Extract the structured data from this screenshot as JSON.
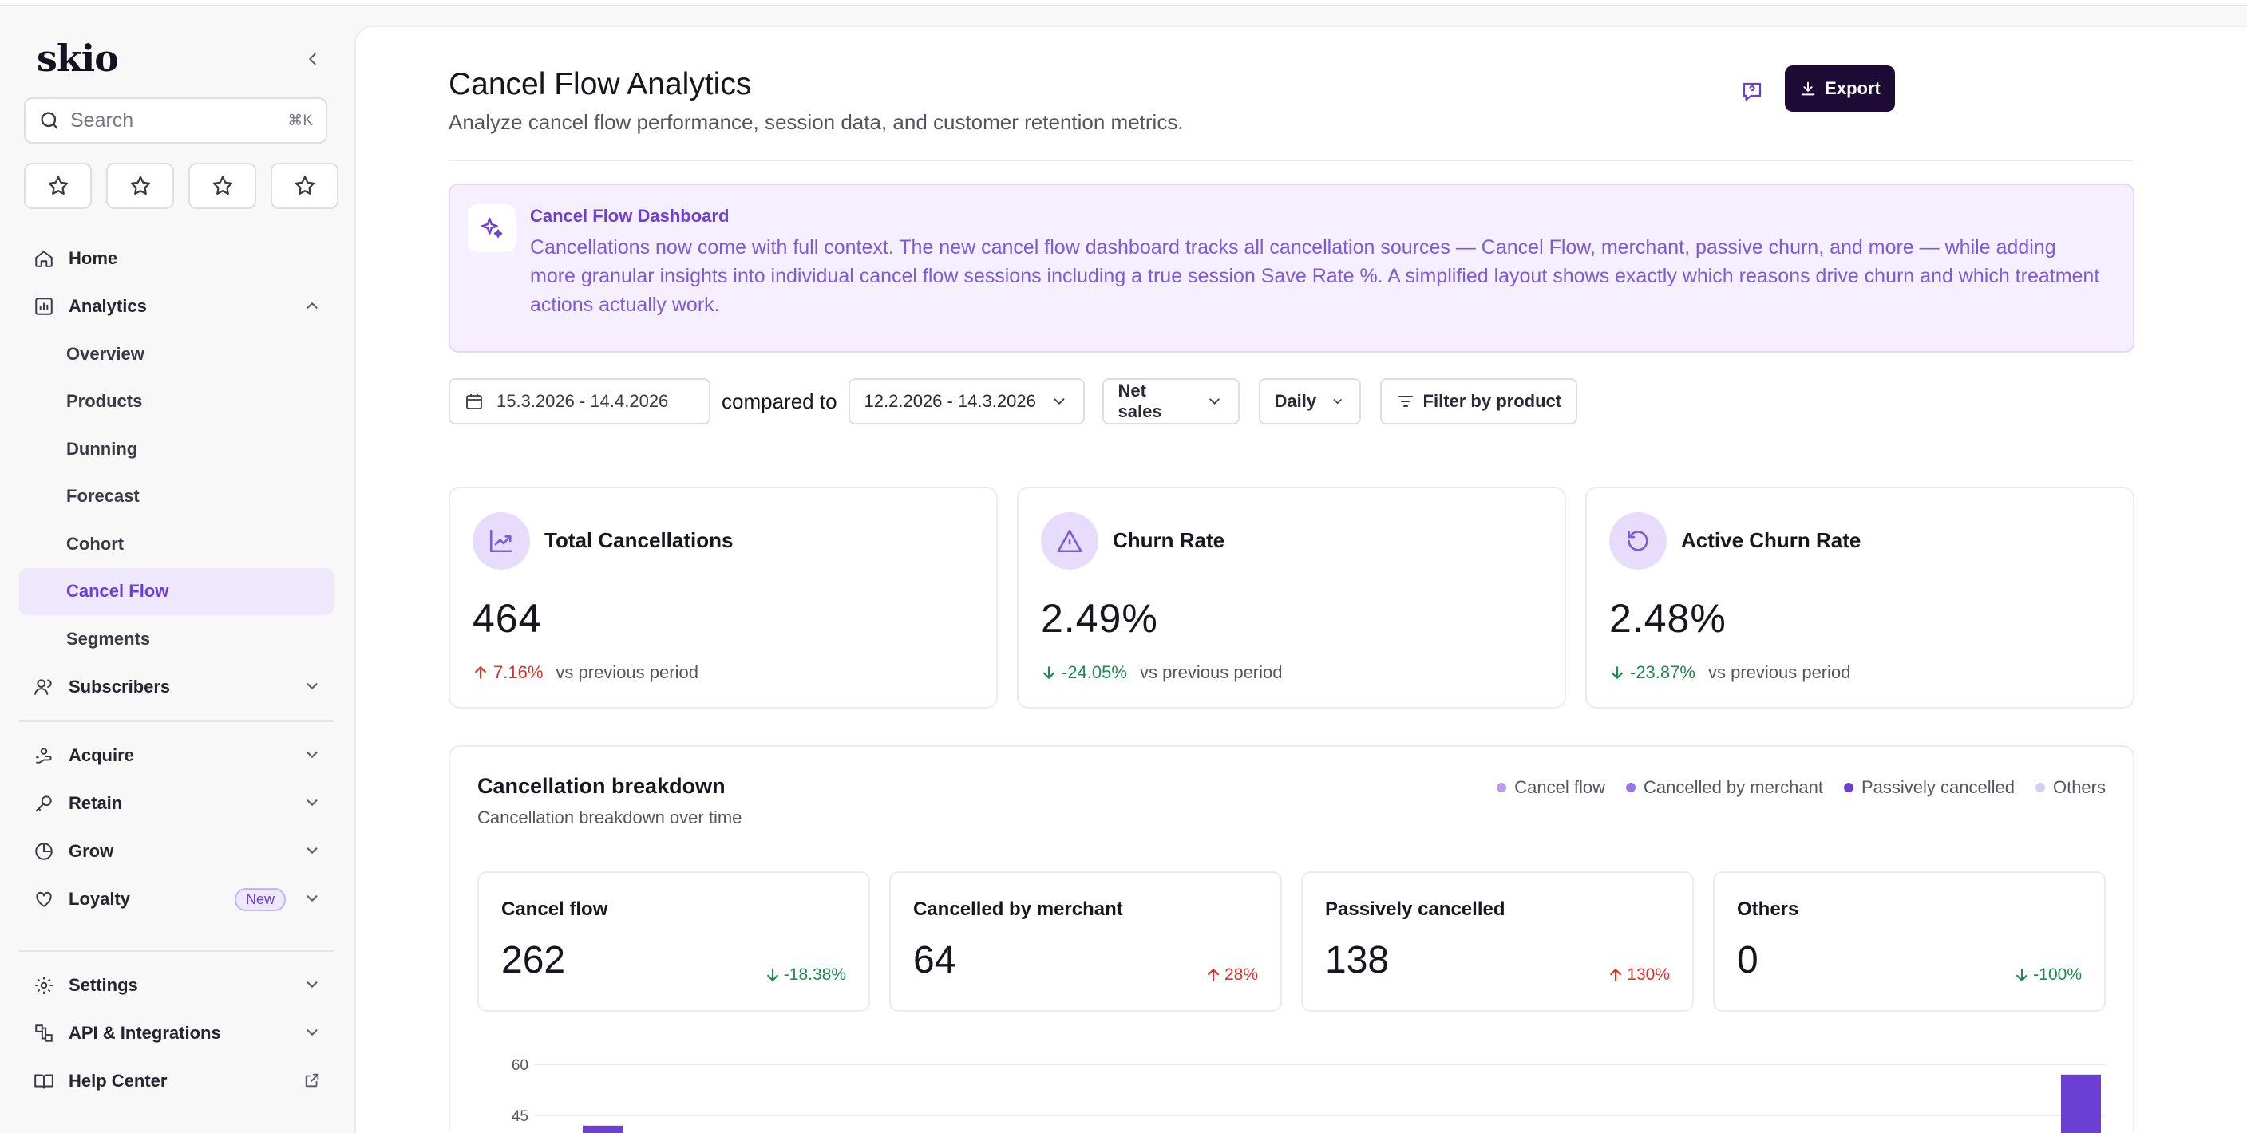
{
  "app": {
    "logo": "skio"
  },
  "sidebar": {
    "search_placeholder": "Search",
    "search_shortcut": "⌘K",
    "nav": {
      "home": "Home",
      "analytics": "Analytics",
      "analytics_sub": [
        "Overview",
        "Products",
        "Dunning",
        "Forecast",
        "Cohort",
        "Cancel Flow",
        "Segments"
      ],
      "subscribers": "Subscribers",
      "acquire": "Acquire",
      "retain": "Retain",
      "grow": "Grow",
      "loyalty": "Loyalty",
      "loyalty_badge": "New",
      "settings": "Settings",
      "api": "API & Integrations",
      "help": "Help Center"
    }
  },
  "header": {
    "title": "Cancel Flow Analytics",
    "subtitle": "Analyze cancel flow performance, session data, and customer retention metrics.",
    "export_label": "Export"
  },
  "banner": {
    "title": "Cancel Flow Dashboard",
    "text": "Cancellations now come with full context. The new cancel flow dashboard tracks all cancellation sources — Cancel Flow, merchant, passive churn, and more — while adding more granular insights into individual cancel flow sessions including a true session Save Rate %. A simplified layout shows exactly which reasons drive churn and which treatment actions actually work."
  },
  "filters": {
    "date_range": "15.3.2026 - 14.4.2026",
    "compared_label": "compared to",
    "compare_range": "12.2.2026 - 14.3.2026",
    "metric": "Net sales",
    "granularity": "Daily",
    "filter_product": "Filter by product"
  },
  "stats": [
    {
      "label": "Total Cancellations",
      "value": "464",
      "change": "7.16%",
      "direction": "up",
      "vs": "vs previous period"
    },
    {
      "label": "Churn Rate",
      "value": "2.49%",
      "change": "-24.05%",
      "direction": "down",
      "vs": "vs previous period"
    },
    {
      "label": "Active Churn Rate",
      "value": "2.48%",
      "change": "-23.87%",
      "direction": "down",
      "vs": "vs previous period"
    }
  ],
  "breakdown": {
    "title": "Cancellation breakdown",
    "subtitle": "Cancellation breakdown over time",
    "legend": [
      {
        "name": "Cancel flow",
        "color": "#b99cf0"
      },
      {
        "name": "Cancelled by merchant",
        "color": "#9a74ea"
      },
      {
        "name": "Passively cancelled",
        "color": "#6b3fd4"
      },
      {
        "name": "Others",
        "color": "#d9ccf7"
      }
    ],
    "cards": [
      {
        "label": "Cancel flow",
        "value": "262",
        "change": "-18.38%",
        "direction": "down"
      },
      {
        "label": "Cancelled by merchant",
        "value": "64",
        "change": "28%",
        "direction": "up"
      },
      {
        "label": "Passively cancelled",
        "value": "138",
        "change": "130%",
        "direction": "up"
      },
      {
        "label": "Others",
        "value": "0",
        "change": "-100%",
        "direction": "down"
      }
    ],
    "y_ticks": [
      "60",
      "45"
    ]
  },
  "chart_data": {
    "type": "bar",
    "yticks": [
      60,
      45
    ],
    "ylim": [
      0,
      60
    ],
    "series": [
      {
        "name": "Passively cancelled",
        "values": [
          42,
          57
        ]
      }
    ]
  }
}
